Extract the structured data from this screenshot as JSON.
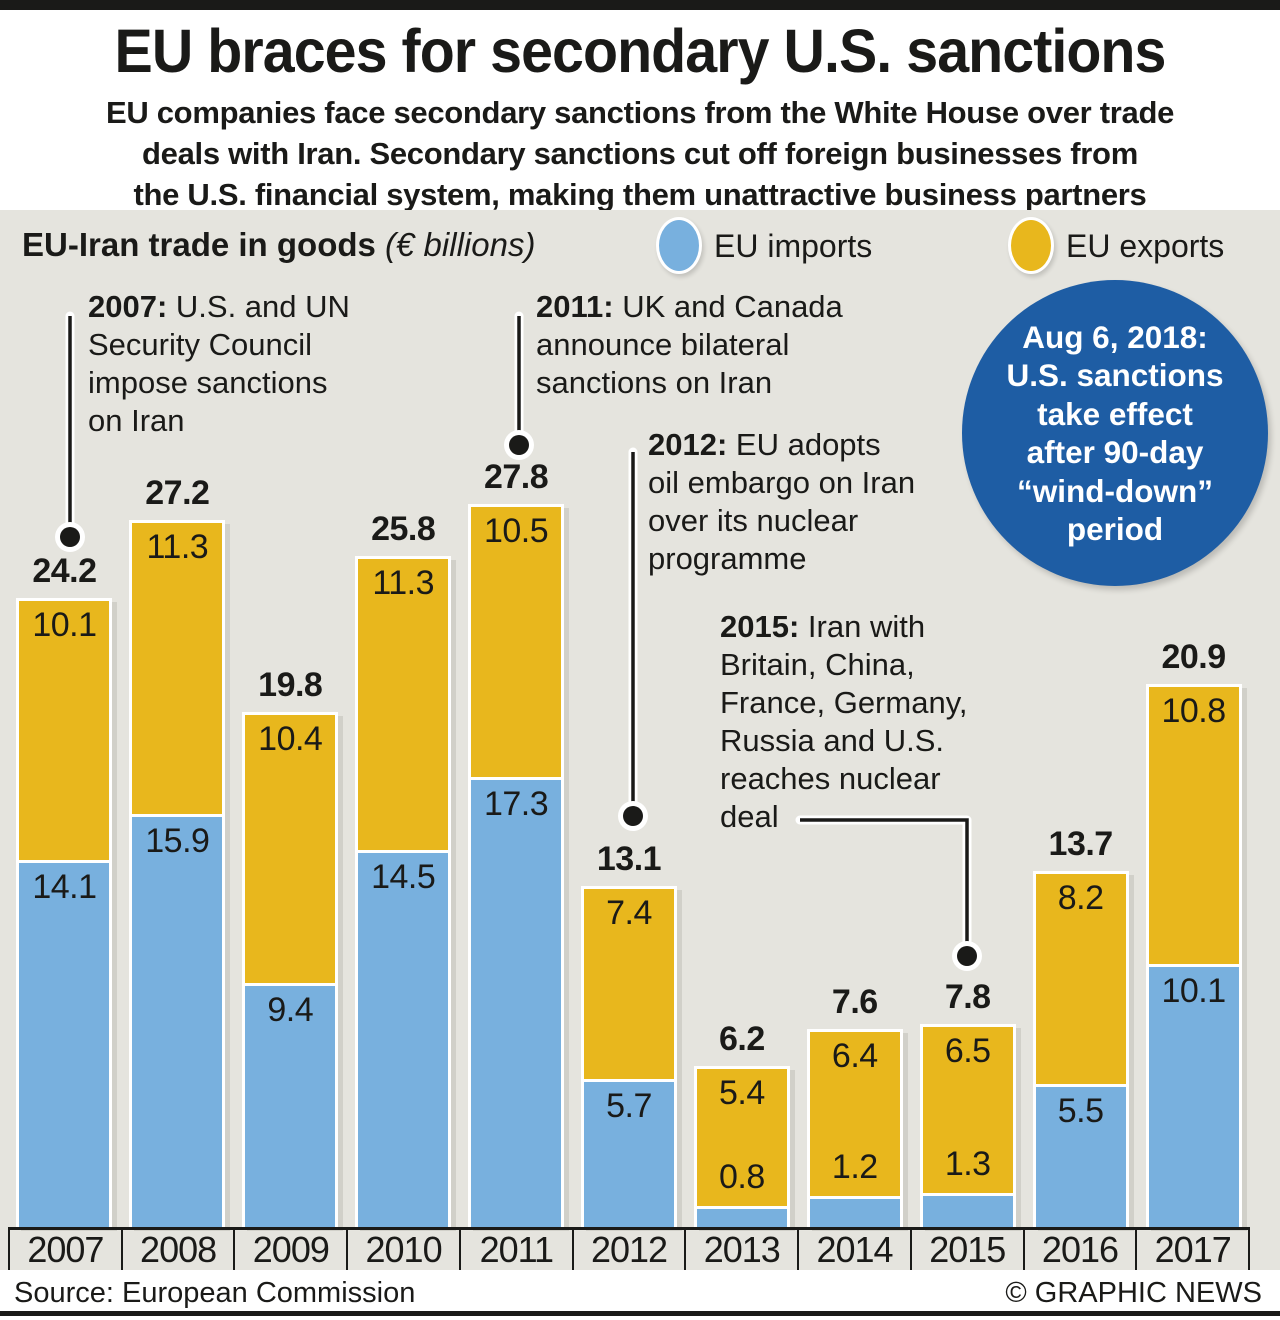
{
  "header": {
    "title": "EU braces for secondary U.S. sanctions",
    "subtitle_lines": [
      "EU companies face secondary sanctions from the White House over trade",
      "deals with Iran. Secondary sanctions cut off foreign businesses from",
      "the U.S. financial system, making them unattractive business partners"
    ]
  },
  "legend": {
    "chart_label": "EU-Iran trade in goods",
    "chart_unit": " (€ billions)",
    "imports_label": "EU imports",
    "exports_label": "EU exports"
  },
  "annotations": [
    {
      "prefix": "2007:",
      "rest": " U.S. and UN\nSecurity Council\nimpose sanctions\non Iran"
    },
    {
      "prefix": "2011:",
      "rest": " UK and Canada\nannounce bilateral\nsanctions on Iran"
    },
    {
      "prefix": "2012:",
      "rest": " EU adopts\noil embargo on Iran\nover its nuclear\nprogramme"
    },
    {
      "prefix": "2015:",
      "rest": " Iran with\nBritain, China,\nFrance, Germany,\nRussia and U.S.\nreaches nuclear\ndeal"
    }
  ],
  "badge": {
    "lines": [
      "Aug 6, 2018:",
      "U.S. sanctions",
      "take effect",
      "after 90-day",
      "“wind-down”",
      "period"
    ]
  },
  "chart_data": {
    "type": "bar",
    "stacked": true,
    "title": "EU-Iran trade in goods (€ billions)",
    "unit": "€ billions",
    "categories": [
      "2007",
      "2008",
      "2009",
      "2010",
      "2011",
      "2012",
      "2013",
      "2014",
      "2015",
      "2016",
      "2017"
    ],
    "series": [
      {
        "name": "EU imports",
        "color": "#78b0de",
        "values": [
          14.1,
          15.9,
          9.4,
          14.5,
          17.3,
          5.7,
          0.8,
          1.2,
          1.3,
          5.5,
          10.1
        ]
      },
      {
        "name": "EU exports",
        "color": "#e8b71d",
        "values": [
          10.1,
          11.3,
          10.4,
          11.3,
          10.5,
          7.4,
          5.4,
          6.4,
          6.5,
          8.2,
          10.8
        ]
      }
    ],
    "totals": [
      24.2,
      27.2,
      19.8,
      25.8,
      27.8,
      13.1,
      6.2,
      7.6,
      7.8,
      13.7,
      20.9
    ],
    "legend_position": "top",
    "grid": false
  },
  "footer": {
    "source": "Source: European Commission",
    "credit": "© GRAPHIC NEWS"
  },
  "colors": {
    "imports_blue": "#78b0de",
    "exports_yellow": "#e8b71d",
    "badge_blue": "#1e5da4",
    "panel_gray": "#e5e4de",
    "ink_black": "#1a1a18"
  }
}
